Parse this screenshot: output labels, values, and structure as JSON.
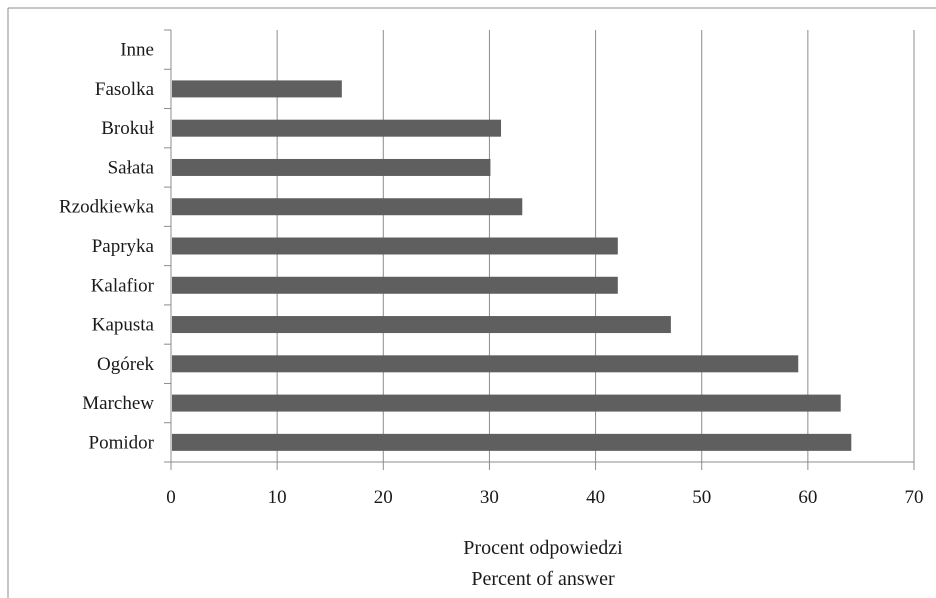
{
  "chart_data": {
    "type": "bar",
    "orientation": "horizontal",
    "categories": [
      "Pomidor",
      "Marchew",
      "Ogórek",
      "Kapusta",
      "Kalafior",
      "Papryka",
      "Rzodkiewka",
      "Sałata",
      "Brokuł",
      "Fasolka",
      "Inne"
    ],
    "values": [
      64,
      63,
      59,
      47,
      42,
      42,
      33,
      30,
      31,
      16,
      0
    ],
    "xlabel": "Procent odpowiedzi",
    "xlabel_secondary": "Percent of answer",
    "ylabel": "",
    "xlim": [
      0,
      70
    ],
    "xticks": [
      "0",
      "10",
      "20",
      "30",
      "40",
      "50",
      "60",
      "70"
    ],
    "xtick_values": [
      0,
      10,
      20,
      30,
      40,
      50,
      60,
      70
    ],
    "grid": "vertical",
    "bar_color": "#5f5f5f",
    "grid_color": "#8c8c8c",
    "border_color": "#8c8c8c"
  }
}
